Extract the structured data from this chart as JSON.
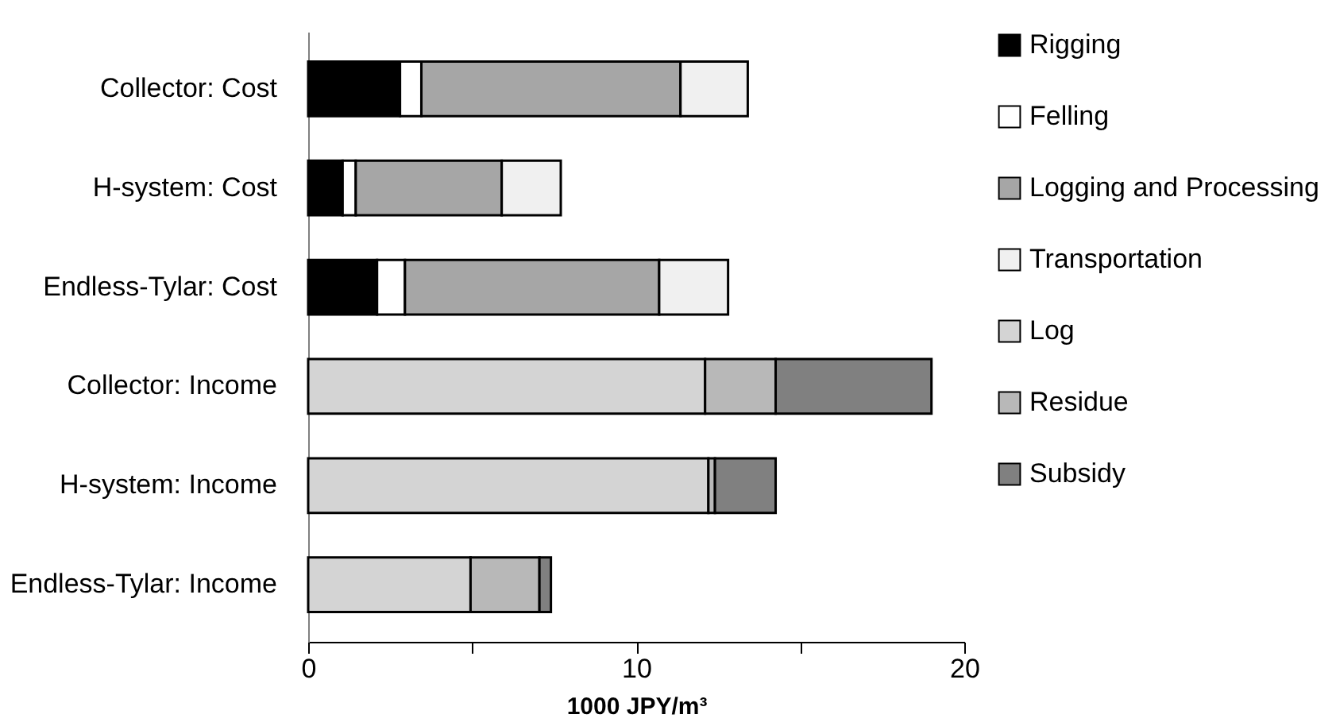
{
  "chart_data": {
    "type": "bar",
    "orientation": "horizontal",
    "stacked": true,
    "categories": [
      "Collector: Cost",
      "H-system: Cost",
      "Endless-Tylar: Cost",
      "Collector: Income",
      "H-system: Income",
      "Endless-Tylar: Income"
    ],
    "series": [
      {
        "name": "Rigging",
        "color": "#000000",
        "values": [
          2.8,
          1.05,
          2.1,
          null,
          null,
          null
        ]
      },
      {
        "name": "Felling",
        "color": "#ffffff",
        "values": [
          0.65,
          0.4,
          0.85,
          null,
          null,
          null
        ]
      },
      {
        "name": "Logging and Processing",
        "color": "#a6a6a6",
        "values": [
          7.9,
          4.45,
          7.75,
          null,
          null,
          null
        ]
      },
      {
        "name": "Transportation",
        "color": "#f0f0f0",
        "values": [
          2.05,
          1.8,
          2.1,
          null,
          null,
          null
        ]
      },
      {
        "name": "Log",
        "color": "#d4d4d4",
        "values": [
          null,
          null,
          null,
          12.1,
          12.2,
          4.95
        ]
      },
      {
        "name": "Residue",
        "color": "#b8b8b8",
        "values": [
          null,
          null,
          null,
          2.15,
          0.2,
          2.1
        ]
      },
      {
        "name": "Subsidy",
        "color": "#808080",
        "values": [
          null,
          null,
          null,
          4.75,
          1.85,
          0.35
        ]
      }
    ],
    "xlabel": "1000 JPY/m³",
    "xlim": [
      0,
      20
    ],
    "xticks": [
      0,
      {
        "value": 5,
        "label": null
      },
      10,
      {
        "value": 15,
        "label": null
      },
      20
    ],
    "grid": false,
    "legend": "right"
  }
}
